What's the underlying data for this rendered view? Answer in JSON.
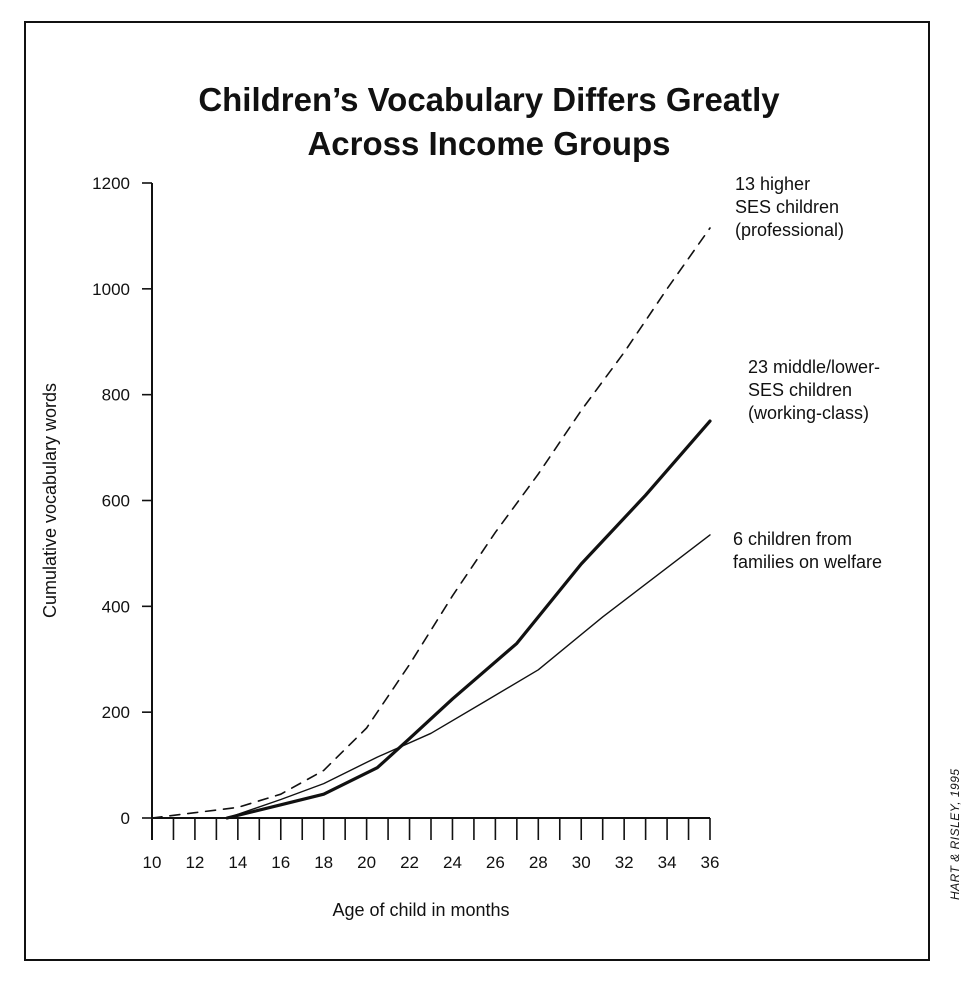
{
  "credit": "HART & RISLEY, 1995",
  "chart_data": {
    "type": "line",
    "title": [
      "Children’s Vocabulary Differs Greatly",
      "Across Income Groups"
    ],
    "xlabel": "Age of child in months",
    "ylabel": "Cumulative vocabulary words",
    "xlim": [
      10,
      36
    ],
    "ylim": [
      0,
      1200
    ],
    "xticks": [
      10,
      12,
      14,
      16,
      18,
      20,
      22,
      24,
      26,
      28,
      30,
      32,
      34,
      36
    ],
    "yticks": [
      0,
      200,
      400,
      600,
      800,
      1000,
      1200
    ],
    "grid": false,
    "legend": "none",
    "series": [
      {
        "name": [
          "13 higher",
          "SES children",
          "(professional)"
        ],
        "style": "dashed",
        "color": "#111111",
        "points": [
          [
            10,
            0
          ],
          [
            12,
            10
          ],
          [
            14,
            20
          ],
          [
            16,
            45
          ],
          [
            18,
            90
          ],
          [
            20,
            170
          ],
          [
            22,
            290
          ],
          [
            24,
            420
          ],
          [
            26,
            540
          ],
          [
            28,
            650
          ],
          [
            30,
            770
          ],
          [
            32,
            880
          ],
          [
            34,
            1000
          ],
          [
            36,
            1115
          ]
        ]
      },
      {
        "name": [
          "23 middle/lower-",
          "SES children",
          "(working-class)"
        ],
        "style": "thick",
        "color": "#111111",
        "points": [
          [
            13.5,
            0
          ],
          [
            16,
            25
          ],
          [
            18,
            45
          ],
          [
            20.5,
            95
          ],
          [
            22,
            150
          ],
          [
            24,
            225
          ],
          [
            27,
            330
          ],
          [
            30,
            480
          ],
          [
            33,
            610
          ],
          [
            36,
            750
          ]
        ]
      },
      {
        "name": [
          "6 children from",
          "families on welfare"
        ],
        "style": "thin",
        "color": "#111111",
        "points": [
          [
            13.5,
            0
          ],
          [
            16,
            35
          ],
          [
            18,
            65
          ],
          [
            20.5,
            115
          ],
          [
            23,
            160
          ],
          [
            25.5,
            220
          ],
          [
            28,
            280
          ],
          [
            31,
            380
          ],
          [
            36,
            535
          ]
        ]
      }
    ]
  }
}
